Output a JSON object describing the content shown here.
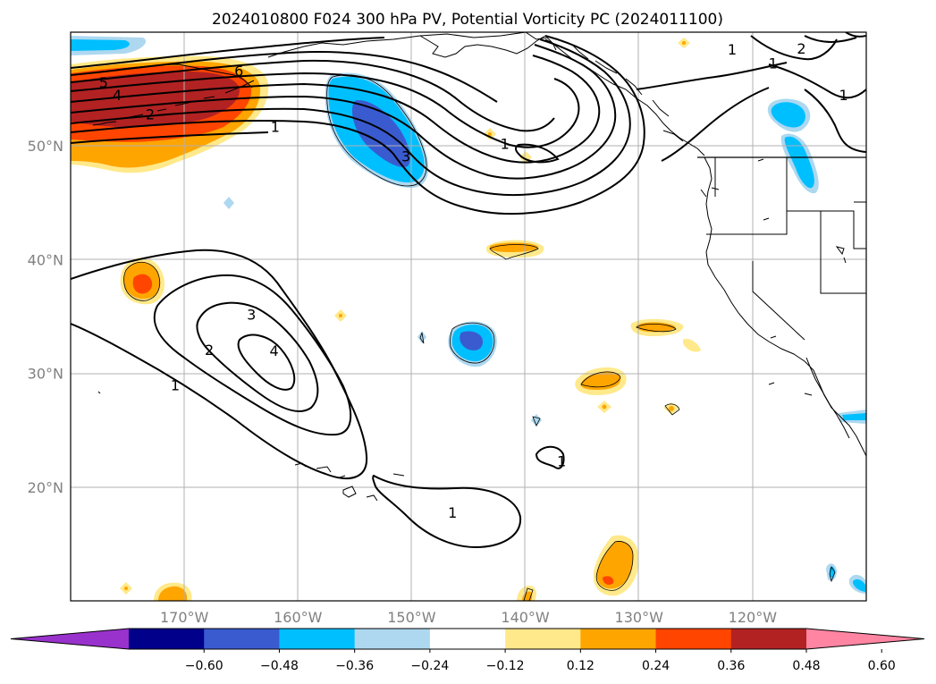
{
  "title": "2024010800 F024 300 hPa PV, Potential Vorticity PC (2024011100)",
  "map": {
    "lon_range": [
      -180,
      -110
    ],
    "lat_range": [
      10,
      60
    ],
    "lat_labels": [
      {
        "lat": 50,
        "label": "50°N"
      },
      {
        "lat": 40,
        "label": "40°N"
      },
      {
        "lat": 30,
        "label": "30°N"
      },
      {
        "lat": 20,
        "label": "20°N"
      }
    ],
    "lon_labels": [
      {
        "lon": -170,
        "label": "170°W"
      },
      {
        "lon": -160,
        "label": "160°W"
      },
      {
        "lon": -150,
        "label": "150°W"
      },
      {
        "lon": -140,
        "label": "140°W"
      },
      {
        "lon": -130,
        "label": "130°W"
      },
      {
        "lon": -120,
        "label": "120°W"
      }
    ],
    "grid": true
  },
  "contour_labels": [
    {
      "text": "5",
      "lon": -177.1,
      "lat": 55.6
    },
    {
      "text": "4",
      "lon": -175.9,
      "lat": 54.5
    },
    {
      "text": "2",
      "lon": -173.0,
      "lat": 52.8
    },
    {
      "text": "6",
      "lon": -165.2,
      "lat": 56.6
    },
    {
      "text": "1",
      "lon": -162.0,
      "lat": 51.7
    },
    {
      "text": "3",
      "lon": -150.5,
      "lat": 49.1
    },
    {
      "text": "1",
      "lon": -141.8,
      "lat": 50.2
    },
    {
      "text": "1",
      "lon": -121.8,
      "lat": 58.5
    },
    {
      "text": "1",
      "lon": -118.2,
      "lat": 57.3
    },
    {
      "text": "2",
      "lon": -115.7,
      "lat": 58.6
    },
    {
      "text": "1",
      "lon": -112.0,
      "lat": 54.5
    },
    {
      "text": "3",
      "lon": -164.1,
      "lat": 35.2
    },
    {
      "text": "2",
      "lon": -167.8,
      "lat": 32.1
    },
    {
      "text": "4",
      "lon": -162.1,
      "lat": 32.0
    },
    {
      "text": "1",
      "lon": -170.8,
      "lat": 29.0
    },
    {
      "text": "1",
      "lon": -146.4,
      "lat": 17.8
    },
    {
      "text": "1",
      "lon": -136.8,
      "lat": 22.3
    }
  ],
  "colorbar": {
    "ticks": [
      "−0.60",
      "−0.48",
      "−0.36",
      "−0.24",
      "−0.12",
      "0.12",
      "0.24",
      "0.36",
      "0.48",
      "0.60"
    ],
    "colors": [
      "#9932cc",
      "#00008b",
      "#3a5bcf",
      "#00bfff",
      "#add8f0",
      "#ffffff",
      "#ffe98a",
      "#ffa500",
      "#ff4500",
      "#b22222",
      "#ff85a2"
    ]
  },
  "fill_colors": {
    "light_yellow": "#ffe98a",
    "orange": "#ffa500",
    "red_orange": "#ff4500",
    "dark_red": "#b22222",
    "deep_sky_blue": "#00bfff",
    "light_blue": "#add8f0",
    "royal_blue": "#3a5bcf"
  }
}
